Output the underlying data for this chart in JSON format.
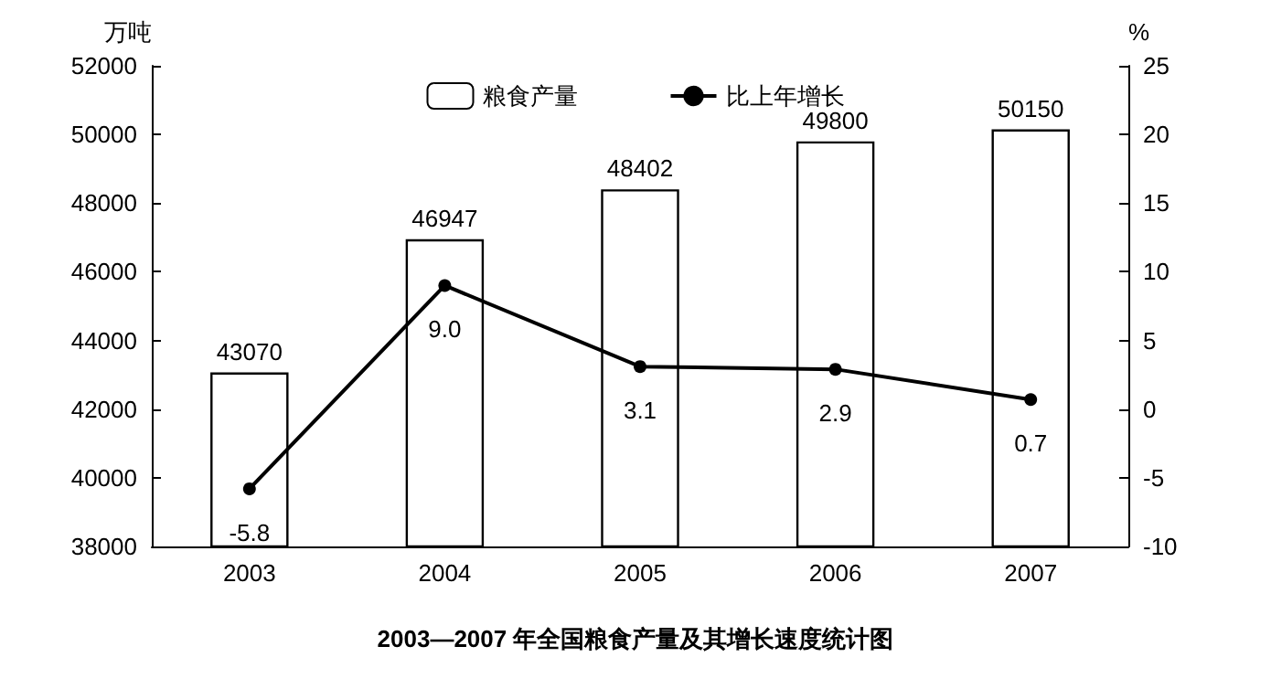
{
  "chart_data": {
    "type": "bar",
    "title": "2003—2007 年全国粮食产量及其增长速度统计图",
    "ylabel": "万吨",
    "y2label": "%",
    "categories": [
      "2003",
      "2004",
      "2005",
      "2006",
      "2007"
    ],
    "series": [
      {
        "name": "粮食产量",
        "color": "#ffffff",
        "values": [
          43070,
          46947,
          48402,
          49800,
          50150
        ]
      },
      {
        "name": "比上年增长",
        "type": "line",
        "axis": "y2",
        "color": "#000000",
        "values": [
          -5.8,
          9.0,
          3.1,
          2.9,
          0.7
        ],
        "value_labels": [
          "-5.8",
          "9.0",
          "3.1",
          "2.9",
          "0.7"
        ]
      }
    ],
    "ylim": [
      38000,
      52000
    ],
    "yticks": [
      38000,
      40000,
      42000,
      44000,
      46000,
      48000,
      50000,
      52000
    ],
    "y2lim": [
      -10,
      25
    ],
    "y2ticks": [
      -10,
      -5,
      0,
      5,
      10,
      15,
      20,
      25
    ],
    "data_labels": true,
    "grid": false,
    "legend": "top",
    "marker": "circle",
    "line_style": "solid"
  }
}
